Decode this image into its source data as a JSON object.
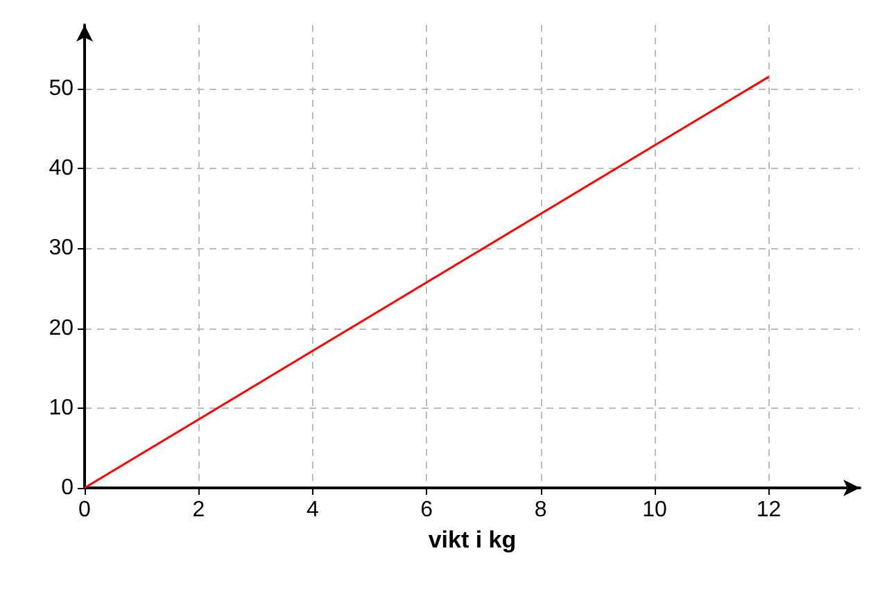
{
  "chart_data": {
    "type": "line",
    "xlabel": "vikt i kg",
    "x": [
      0,
      12
    ],
    "series": [
      {
        "color": "#ff0000",
        "values": [
          0,
          51.5
        ]
      }
    ],
    "xlim": [
      0,
      13.6
    ],
    "xticks": [
      0,
      2,
      4,
      6,
      8,
      10,
      12
    ],
    "ylim": [
      0,
      58
    ],
    "yticks": [
      0,
      10,
      20,
      30,
      40,
      50
    ],
    "grid": true,
    "marker": "none",
    "line_style": "solid"
  }
}
